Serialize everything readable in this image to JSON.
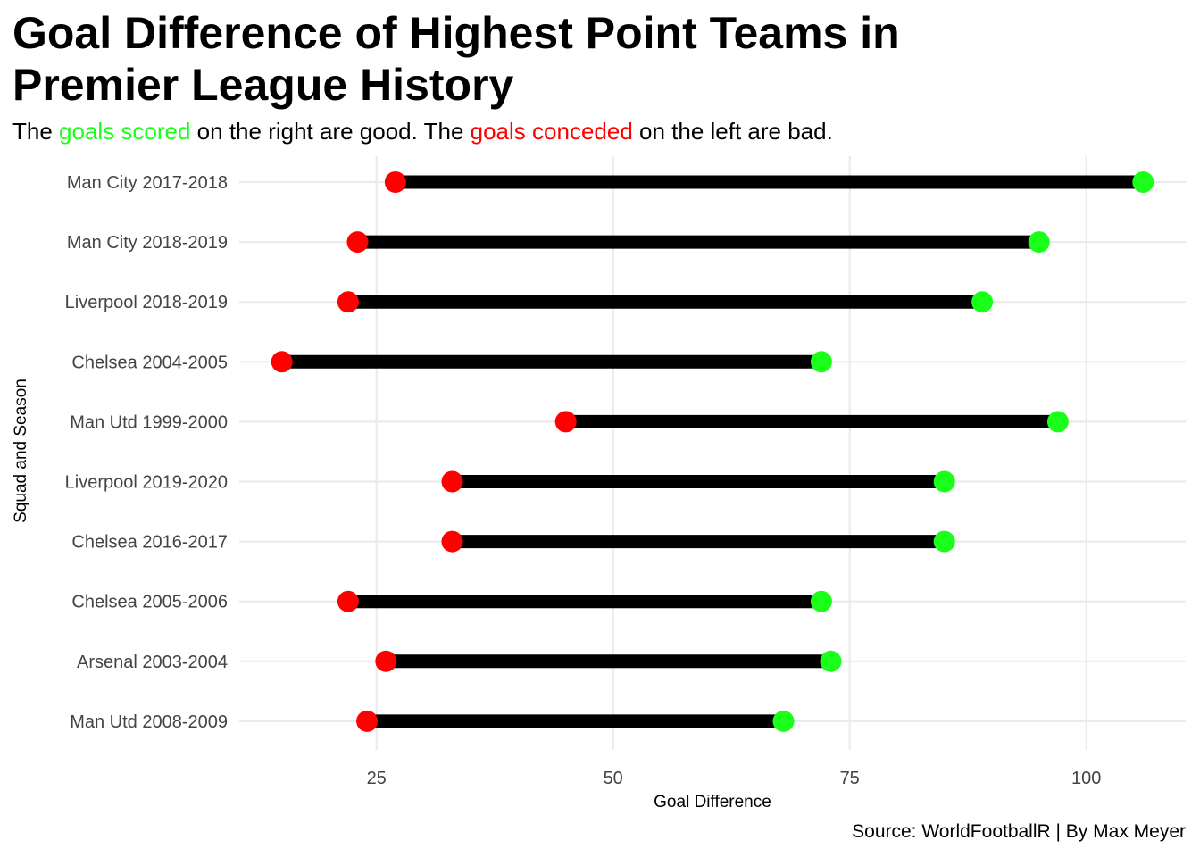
{
  "chart_data": {
    "type": "dumbbell",
    "title_lines": [
      "Goal Difference of Highest Point Teams in",
      "Premier League History"
    ],
    "subtitle": {
      "part1": "The ",
      "good": "goals scored",
      "part2": " on the right are good. The ",
      "bad": "goals conceded",
      "part3": " on the left are bad."
    },
    "xlabel": "Goal Difference",
    "ylabel": "Squad and Season",
    "caption": "Source: WorldFootballR | By Max Meyer",
    "xlim": [
      10.5,
      110.5
    ],
    "xticks": [
      25,
      50,
      75,
      100
    ],
    "grid": true,
    "colors": {
      "scored": "#1aff1a",
      "conceded": "#ff0000",
      "segment": "#000000",
      "grid": "#ebebeb"
    },
    "categories": [
      "Man City 2017-2018",
      "Man City 2018-2019",
      "Liverpool 2018-2019",
      "Chelsea 2004-2005",
      "Man Utd 1999-2000",
      "Liverpool 2019-2020",
      "Chelsea 2016-2017",
      "Chelsea 2005-2006",
      "Arsenal 2003-2004",
      "Man Utd 2008-2009"
    ],
    "goals_conceded": [
      27,
      23,
      22,
      15,
      45,
      33,
      33,
      22,
      26,
      24
    ],
    "goals_scored": [
      106,
      95,
      89,
      72,
      97,
      85,
      85,
      72,
      73,
      68
    ]
  }
}
